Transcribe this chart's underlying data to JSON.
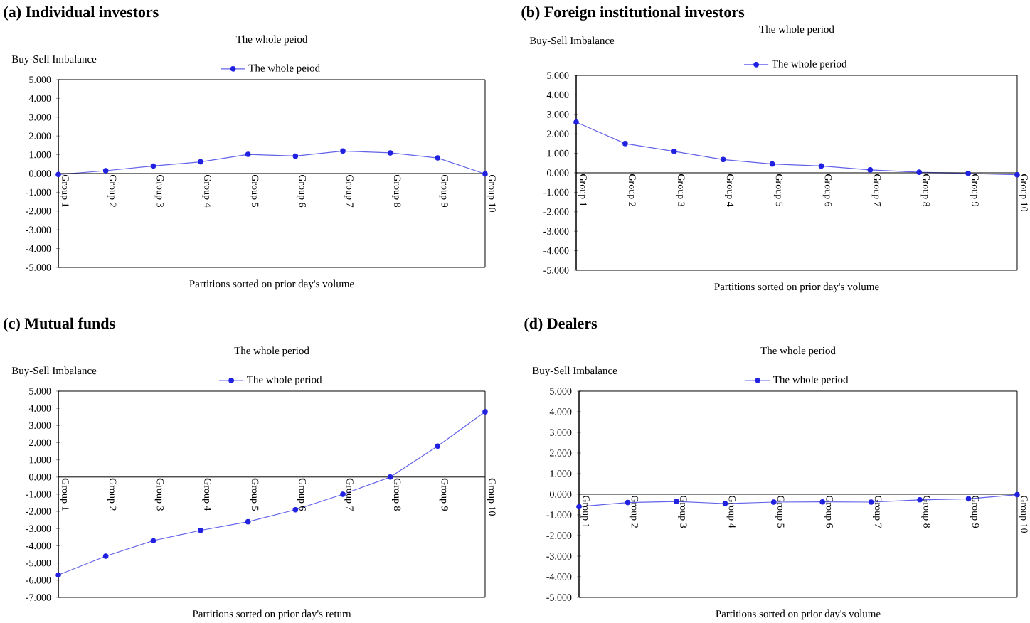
{
  "chart_data": [
    {
      "type": "line",
      "title": "(a) Individual investors",
      "subtitle": "The whole peiod",
      "xlabel": "Partitions sorted on prior day's volume",
      "ylabel": "Buy-Sell Imbalance",
      "legend": "top",
      "marker": "circle",
      "categories": [
        "Group 1",
        "Group 2",
        "Group 3",
        "Group 4",
        "Group 5",
        "Group 6",
        "Group 7",
        "Group 8",
        "Group 9",
        "Group 10"
      ],
      "ylim": [
        -5,
        5
      ],
      "yticks": [
        {
          "value": -5,
          "label": "-5.000"
        },
        {
          "value": -4,
          "label": "-4.000"
        },
        {
          "value": -3,
          "label": "-3.000"
        },
        {
          "value": -2,
          "label": "-2.000"
        },
        {
          "value": -1,
          "label": "-1.000"
        },
        {
          "value": 0,
          "label": "0.000"
        },
        {
          "value": 1,
          "label": "1.000"
        },
        {
          "value": 2,
          "label": "2.000"
        },
        {
          "value": 3,
          "label": "3.000"
        },
        {
          "value": 4,
          "label": "4.000"
        },
        {
          "value": 5,
          "label": "5.000"
        }
      ],
      "series": [
        {
          "name": "The whole peiod",
          "color": "#2020e0",
          "values": [
            -0.05,
            0.15,
            0.4,
            0.62,
            1.02,
            0.93,
            1.2,
            1.1,
            0.83,
            -0.02
          ]
        }
      ]
    },
    {
      "type": "line",
      "title": "(b) Foreign institutional investors",
      "subtitle": "The whole period",
      "xlabel": "Partitions sorted on prior day's volume",
      "ylabel": "Buy-Sell Imbalance",
      "legend": "top",
      "marker": "circle",
      "categories": [
        "Group 1",
        "Group 2",
        "Group 3",
        "Group 4",
        "Group 5",
        "Group 6",
        "Group 7",
        "Group 8",
        "Group 9",
        "Group 10"
      ],
      "ylim": [
        -5,
        5
      ],
      "yticks": [
        {
          "value": -5,
          "label": "-5.000"
        },
        {
          "value": -4,
          "label": "-4.000"
        },
        {
          "value": -3,
          "label": "-3.000"
        },
        {
          "value": -2,
          "label": "-2.000"
        },
        {
          "value": -1,
          "label": "-1.000"
        },
        {
          "value": 0,
          "label": "0.000"
        },
        {
          "value": 1,
          "label": "1.000"
        },
        {
          "value": 2,
          "label": "2.000"
        },
        {
          "value": 3,
          "label": "3.000"
        },
        {
          "value": 4,
          "label": "4.000"
        },
        {
          "value": 5,
          "label": "5.000"
        }
      ],
      "series": [
        {
          "name": "The whole period",
          "color": "#2020e0",
          "values": [
            2.6,
            1.5,
            1.1,
            0.68,
            0.45,
            0.35,
            0.15,
            0.03,
            -0.03,
            -0.1
          ]
        }
      ]
    },
    {
      "type": "line",
      "title": "(c) Mutual funds",
      "subtitle": "The whole period",
      "xlabel": "Partitions sorted on prior day's return",
      "ylabel": "Buy-Sell Imbalance",
      "legend": "top",
      "marker": "circle",
      "categories": [
        "Group 1",
        "Group 2",
        "Group 3",
        "Group 4",
        "Group 5",
        "Group 6",
        "Group 7",
        "Group 8",
        "Group 9",
        "Group 10"
      ],
      "ylim": [
        -7,
        5
      ],
      "yticks": [
        {
          "value": -7,
          "label": "-7.000"
        },
        {
          "value": -6,
          "label": "-6.000"
        },
        {
          "value": -5,
          "label": "-5.000"
        },
        {
          "value": -4,
          "label": "-4.000"
        },
        {
          "value": -3,
          "label": "-3.000"
        },
        {
          "value": -2,
          "label": "-2.000"
        },
        {
          "value": -1,
          "label": "-1.000"
        },
        {
          "value": 0,
          "label": "0.000"
        },
        {
          "value": 1,
          "label": "1.000"
        },
        {
          "value": 2,
          "label": "2.000"
        },
        {
          "value": 3,
          "label": "3.000"
        },
        {
          "value": 4,
          "label": "4.000"
        },
        {
          "value": 5,
          "label": "5.000"
        }
      ],
      "series": [
        {
          "name": "The whole period",
          "color": "#2020e0",
          "values": [
            -5.7,
            -4.6,
            -3.7,
            -3.1,
            -2.6,
            -1.9,
            -1.0,
            0.0,
            1.8,
            3.8
          ]
        }
      ]
    },
    {
      "type": "line",
      "title": "(d) Dealers",
      "subtitle": "The whole period",
      "xlabel": "Partitions sorted on prior day's volume",
      "ylabel": "Buy-Sell Imbalance",
      "legend": "top",
      "marker": "circle",
      "categories": [
        "Group 1",
        "Group 2",
        "Group 3",
        "Group 4",
        "Group 5",
        "Group 6",
        "Group 7",
        "Group 8",
        "Group 9",
        "Group 10"
      ],
      "ylim": [
        -5,
        5
      ],
      "yticks": [
        {
          "value": -5,
          "label": "-5.000"
        },
        {
          "value": -4,
          "label": "-4.000"
        },
        {
          "value": -3,
          "label": "-3.000"
        },
        {
          "value": -2,
          "label": "-2.000"
        },
        {
          "value": -1,
          "label": "-1.000"
        },
        {
          "value": 0,
          "label": "0.000"
        },
        {
          "value": 1,
          "label": "1.000"
        },
        {
          "value": 2,
          "label": "2.000"
        },
        {
          "value": 3,
          "label": "3.000"
        },
        {
          "value": 4,
          "label": "4.000"
        },
        {
          "value": 5,
          "label": "5.000"
        }
      ],
      "series": [
        {
          "name": "The whole period",
          "color": "#2020e0",
          "values": [
            -0.6,
            -0.4,
            -0.35,
            -0.45,
            -0.38,
            -0.37,
            -0.38,
            -0.27,
            -0.22,
            -0.02
          ]
        }
      ]
    }
  ]
}
